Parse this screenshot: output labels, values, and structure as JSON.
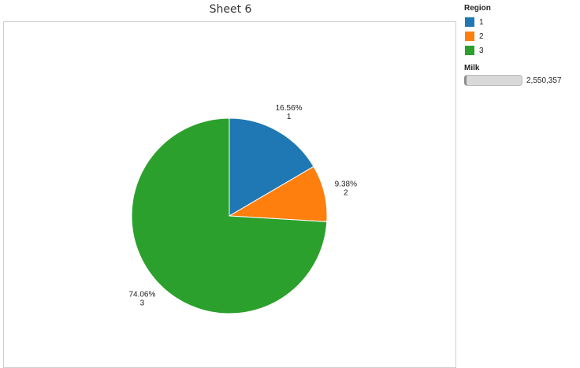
{
  "sheet": {
    "title": "Sheet 6"
  },
  "legend": {
    "title": "Region",
    "items": [
      {
        "label": "1",
        "color": "#1f77b4"
      },
      {
        "label": "2",
        "color": "#ff7f0e"
      },
      {
        "label": "3",
        "color": "#2ca02c"
      }
    ]
  },
  "size_legend": {
    "title": "Milk",
    "value": "2,550,357"
  },
  "chart_data": {
    "type": "pie",
    "title": "Sheet 6",
    "categories": [
      "1",
      "2",
      "3"
    ],
    "values": [
      16.56,
      9.38,
      74.06
    ],
    "value_labels": [
      "16.56%",
      "9.38%",
      "74.06%"
    ],
    "colors": [
      "#1f77b4",
      "#ff7f0e",
      "#2ca02c"
    ],
    "start_angle_deg": 0,
    "direction": "clockwise",
    "legend_position": "top-right"
  }
}
